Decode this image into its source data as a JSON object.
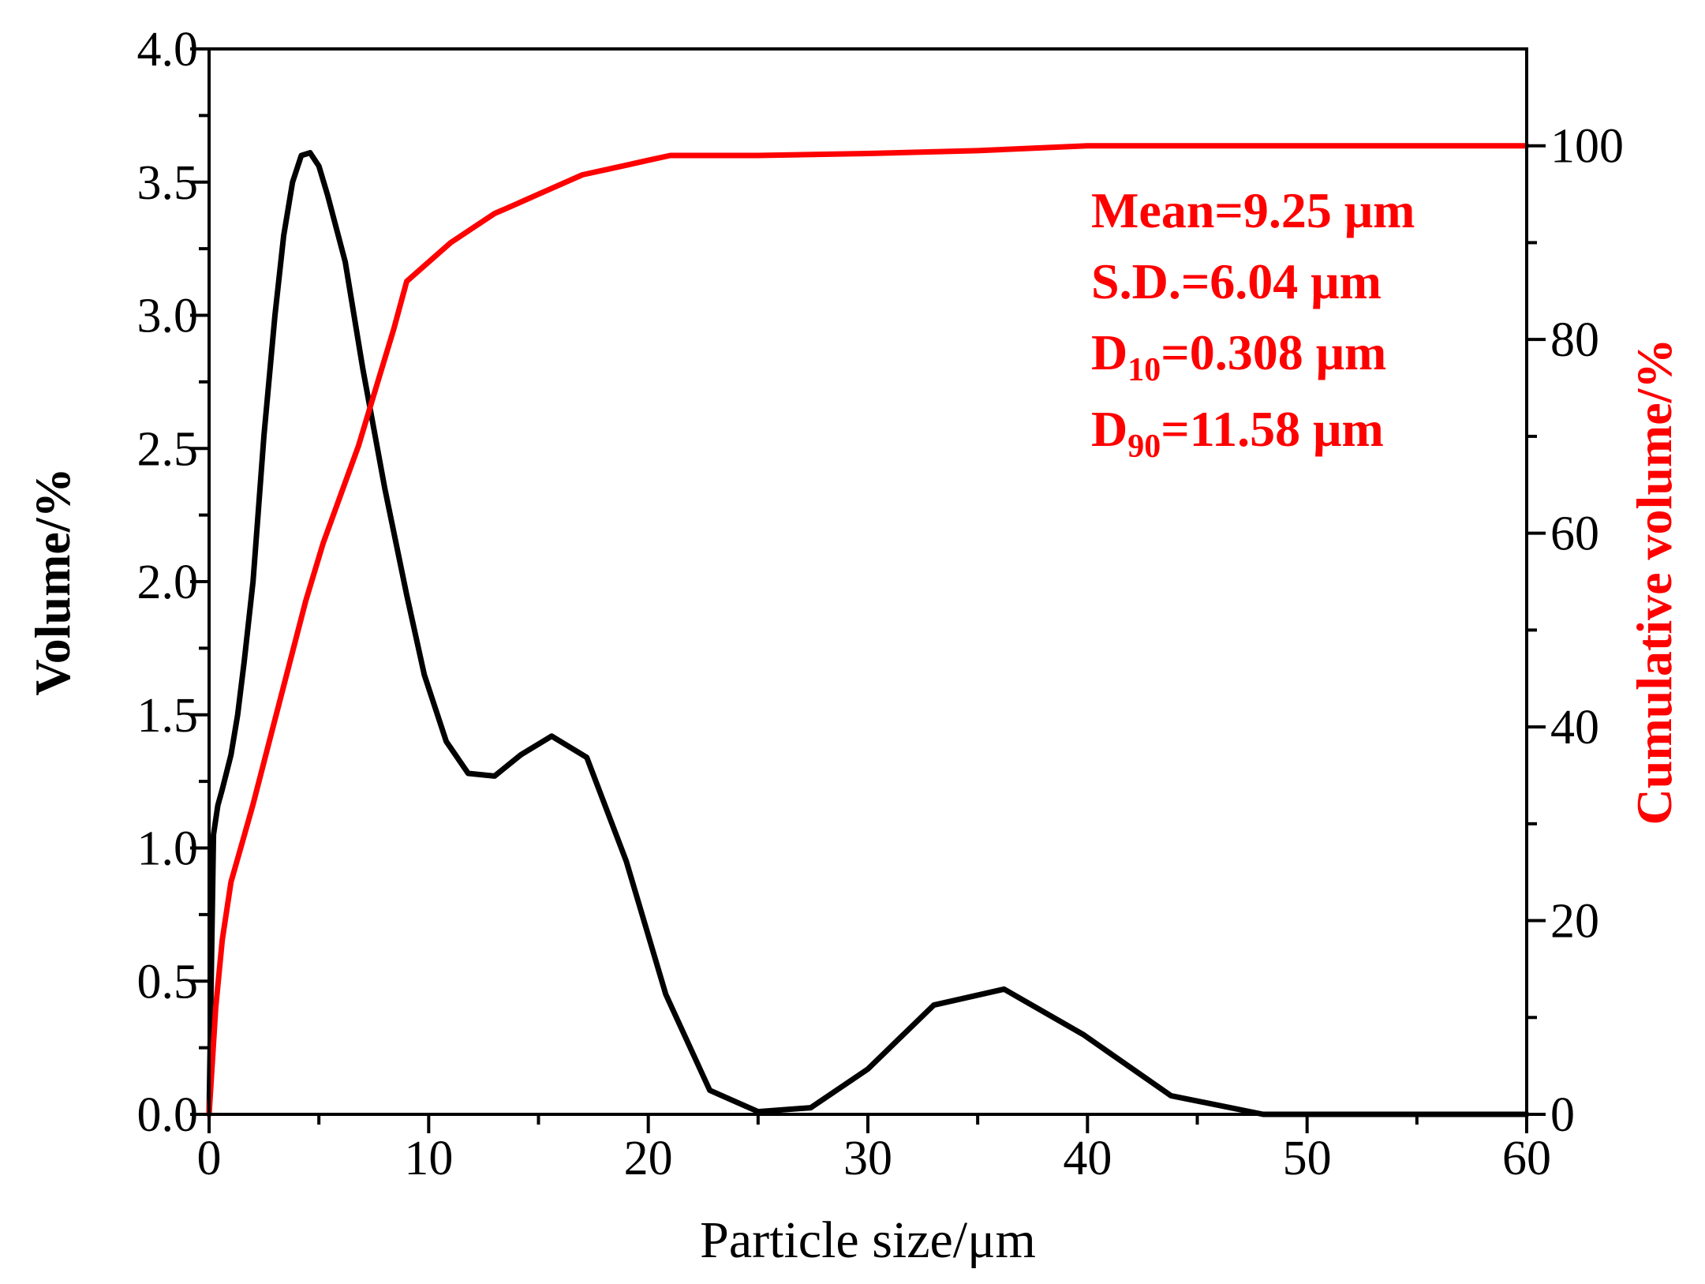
{
  "chart_data": {
    "type": "line",
    "title": "",
    "xlabel": "Particle size/μm",
    "ylabel": "Volume/%",
    "y2label": "Cumulative volume/%",
    "xlim": [
      0,
      60
    ],
    "ylim": [
      0,
      4.0
    ],
    "y2lim": [
      0,
      110
    ],
    "x_ticks": [
      0,
      10,
      20,
      30,
      40,
      50,
      60
    ],
    "y_ticks": [
      0.0,
      0.5,
      1.0,
      1.5,
      2.0,
      2.5,
      3.0,
      3.5,
      4.0
    ],
    "y_tick_labels": [
      "0.0",
      "0.5",
      "1.0",
      "1.5",
      "2.0",
      "2.5",
      "3.0",
      "3.5",
      "4.0"
    ],
    "y2_ticks": [
      0,
      20,
      40,
      60,
      80,
      100
    ],
    "grid": false,
    "legend": "none",
    "colors": {
      "volume": "#000000",
      "cumulative": "#ff0000",
      "annotation": "#ff0000"
    },
    "series": [
      {
        "axis": "left",
        "color": "#000000",
        "x": [
          0,
          0.2,
          0.4,
          0.6,
          1.0,
          1.3,
          1.6,
          2.0,
          2.5,
          3.0,
          3.4,
          3.8,
          4.2,
          4.6,
          5.0,
          5.4,
          6.2,
          7.0,
          8.0,
          9.0,
          9.8,
          10.8,
          11.8,
          13.0,
          14.2,
          15.6,
          17.2,
          19.0,
          20.8,
          22.8,
          25.0,
          27.4,
          30.0,
          33.0,
          36.2,
          39.8,
          43.8,
          48.0,
          52.0,
          56.0,
          60.0
        ],
        "values": [
          0,
          1.05,
          1.16,
          1.22,
          1.35,
          1.5,
          1.7,
          2.0,
          2.55,
          3.0,
          3.3,
          3.5,
          3.6,
          3.61,
          3.56,
          3.45,
          3.2,
          2.8,
          2.35,
          1.95,
          1.65,
          1.4,
          1.28,
          1.27,
          1.35,
          1.42,
          1.34,
          0.95,
          0.45,
          0.09,
          0.01,
          0.025,
          0.17,
          0.41,
          0.47,
          0.3,
          0.07,
          0.0,
          0.0,
          0.0,
          0.0
        ]
      },
      {
        "axis": "right",
        "color": "#ff0000",
        "x": [
          0,
          0.3,
          0.6,
          1.0,
          1.5,
          2.0,
          2.8,
          3.6,
          4.4,
          5.2,
          6.0,
          6.8,
          7.6,
          8.4,
          9.0,
          10.0,
          11.0,
          12.0,
          13.0,
          14.0,
          15.0,
          16.0,
          17.0,
          18.0,
          19.0,
          20.0,
          21.0,
          25.0,
          30.0,
          35.0,
          40.0,
          45.0,
          50.0,
          60.0
        ],
        "values": [
          0,
          11,
          18,
          24,
          28,
          32,
          39,
          46,
          53,
          59,
          64,
          69,
          75,
          81,
          86,
          88,
          90,
          91.5,
          93,
          94,
          95,
          96,
          97,
          97.5,
          98,
          98.5,
          99,
          99,
          99.2,
          99.5,
          100,
          100,
          100,
          100
        ]
      }
    ],
    "annotations": [
      {
        "text": "Mean=9.25 μm"
      },
      {
        "text": "S.D.=6.04 μm"
      },
      {
        "prefix": "D",
        "sub": "10",
        "suffix": "=0.308 μm"
      },
      {
        "prefix": "D",
        "sub": "90",
        "suffix": "=11.58 μm"
      }
    ]
  }
}
